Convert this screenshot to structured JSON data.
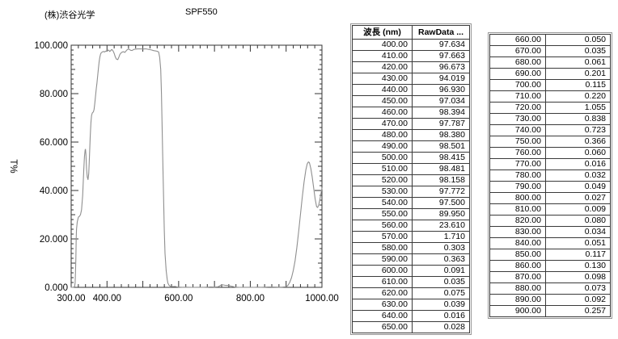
{
  "header": {
    "company": "(株)渋谷光学",
    "title": "SPF550"
  },
  "colors": {
    "curve": "#8f8f8f",
    "axis": "#333333",
    "background": "#ffffff",
    "table_border": "#3a3a3a"
  },
  "chart_data": {
    "type": "line",
    "title": "SPF550",
    "xlabel": "",
    "ylabel": "T%",
    "xlim": [
      300,
      1000
    ],
    "ylim": [
      0,
      100
    ],
    "grid": false,
    "legend": "none",
    "x_minor_step": 20,
    "x_major_step": 100,
    "y_minor_step": 2,
    "y_mid_step": 10,
    "y_major_step": 20,
    "x_tick_labels": [
      {
        "value": 300,
        "label": "300.00"
      },
      {
        "value": 400,
        "label": "400.00"
      },
      {
        "value": 600,
        "label": "600.00"
      },
      {
        "value": 800,
        "label": "800.00"
      },
      {
        "value": 1000,
        "label": "1000.00"
      }
    ],
    "y_tick_labels": [
      {
        "value": 100,
        "label": "100.000"
      },
      {
        "value": 80,
        "label": "80.000"
      },
      {
        "value": 60,
        "label": "60.000"
      },
      {
        "value": 40,
        "label": "40.000"
      },
      {
        "value": 20,
        "label": "20.000"
      },
      {
        "value": 0,
        "label": "0.000"
      }
    ],
    "series": [
      {
        "name": "RawData",
        "color": "#8f8f8f",
        "points": [
          [
            300,
            0
          ],
          [
            305,
            0
          ],
          [
            308,
            0.1
          ],
          [
            310,
            0.6
          ],
          [
            311,
            2
          ],
          [
            312,
            6
          ],
          [
            313,
            12
          ],
          [
            314,
            20
          ],
          [
            315,
            24
          ],
          [
            317,
            27
          ],
          [
            320,
            29
          ],
          [
            323,
            29.3
          ],
          [
            326,
            30
          ],
          [
            329,
            32
          ],
          [
            332,
            38
          ],
          [
            335,
            48
          ],
          [
            337,
            54
          ],
          [
            339,
            56.8
          ],
          [
            340,
            57
          ],
          [
            341,
            55
          ],
          [
            343,
            49
          ],
          [
            345,
            45.5
          ],
          [
            347,
            44.5
          ],
          [
            349,
            47
          ],
          [
            351,
            54
          ],
          [
            353,
            62
          ],
          [
            355,
            68
          ],
          [
            357,
            71
          ],
          [
            359,
            72
          ],
          [
            362,
            72.5
          ],
          [
            364,
            73.5
          ],
          [
            366,
            76
          ],
          [
            368,
            79
          ],
          [
            370,
            82
          ],
          [
            372,
            84.5
          ],
          [
            374,
            87.5
          ],
          [
            376,
            90.5
          ],
          [
            378,
            93
          ],
          [
            380,
            95
          ],
          [
            382,
            96.3
          ],
          [
            384,
            96.9
          ],
          [
            386,
            97.1
          ],
          [
            388,
            97.3
          ],
          [
            390,
            97.4
          ],
          [
            393,
            97.2
          ],
          [
            396,
            97.5
          ],
          [
            398,
            97.6
          ],
          [
            400,
            97.634
          ],
          [
            403,
            97.9
          ],
          [
            405,
            98.0
          ],
          [
            407,
            97.4
          ],
          [
            410,
            97.663
          ],
          [
            412,
            98.1
          ],
          [
            414,
            98.2
          ],
          [
            417,
            97.6
          ],
          [
            420,
            96.673
          ],
          [
            423,
            95.2
          ],
          [
            426,
            94.3
          ],
          [
            430,
            94.019
          ],
          [
            433,
            95.0
          ],
          [
            436,
            96.2
          ],
          [
            440,
            96.93
          ],
          [
            443,
            97.2
          ],
          [
            446,
            97.3
          ],
          [
            450,
            97.034
          ],
          [
            453,
            97.6
          ],
          [
            456,
            98.1
          ],
          [
            460,
            98.394
          ],
          [
            463,
            98.2
          ],
          [
            466,
            97.9
          ],
          [
            470,
            97.787
          ],
          [
            473,
            98.1
          ],
          [
            476,
            98.3
          ],
          [
            480,
            98.38
          ],
          [
            485,
            98.45
          ],
          [
            490,
            98.501
          ],
          [
            495,
            98.46
          ],
          [
            500,
            98.415
          ],
          [
            505,
            98.45
          ],
          [
            510,
            98.481
          ],
          [
            515,
            98.3
          ],
          [
            520,
            98.158
          ],
          [
            525,
            98.0
          ],
          [
            530,
            97.772
          ],
          [
            535,
            97.65
          ],
          [
            540,
            97.5
          ],
          [
            544,
            97.2
          ],
          [
            547,
            95.0
          ],
          [
            550,
            89.95
          ],
          [
            552,
            80
          ],
          [
            554,
            65
          ],
          [
            556,
            50
          ],
          [
            558,
            36
          ],
          [
            560,
            23.61
          ],
          [
            562,
            14
          ],
          [
            565,
            7
          ],
          [
            568,
            3.3
          ],
          [
            570,
            1.71
          ],
          [
            573,
            0.9
          ],
          [
            576,
            0.5
          ],
          [
            580,
            0.303
          ],
          [
            585,
            0.34
          ],
          [
            590,
            0.363
          ],
          [
            595,
            0.2
          ],
          [
            600,
            0.091
          ],
          [
            610,
            0.035
          ],
          [
            620,
            0.075
          ],
          [
            630,
            0.039
          ],
          [
            640,
            0.016
          ],
          [
            650,
            0.028
          ],
          [
            660,
            0.05
          ],
          [
            670,
            0.035
          ],
          [
            680,
            0.061
          ],
          [
            690,
            0.201
          ],
          [
            700,
            0.115
          ],
          [
            710,
            0.22
          ],
          [
            715,
            0.65
          ],
          [
            720,
            1.055
          ],
          [
            725,
            1.0
          ],
          [
            730,
            0.838
          ],
          [
            735,
            0.79
          ],
          [
            740,
            0.723
          ],
          [
            745,
            0.55
          ],
          [
            750,
            0.366
          ],
          [
            755,
            0.2
          ],
          [
            760,
            0.06
          ],
          [
            770,
            0.016
          ],
          [
            780,
            0.032
          ],
          [
            790,
            0.049
          ],
          [
            800,
            0.027
          ],
          [
            810,
            0.009
          ],
          [
            820,
            0.08
          ],
          [
            830,
            0.034
          ],
          [
            840,
            0.051
          ],
          [
            850,
            0.117
          ],
          [
            860,
            0.13
          ],
          [
            870,
            0.098
          ],
          [
            880,
            0.073
          ],
          [
            890,
            0.092
          ],
          [
            900,
            0.257
          ],
          [
            905,
            0.8
          ],
          [
            910,
            2
          ],
          [
            915,
            4
          ],
          [
            920,
            7
          ],
          [
            925,
            11
          ],
          [
            930,
            16.5
          ],
          [
            935,
            23
          ],
          [
            940,
            30
          ],
          [
            945,
            37
          ],
          [
            950,
            43.5
          ],
          [
            955,
            48.5
          ],
          [
            959,
            51
          ],
          [
            962,
            51.8
          ],
          [
            965,
            51.5
          ],
          [
            969,
            49
          ],
          [
            973,
            45.5
          ],
          [
            977,
            41
          ],
          [
            981,
            36.5
          ],
          [
            985,
            33.3
          ],
          [
            988,
            33
          ],
          [
            991,
            34
          ],
          [
            994,
            36
          ],
          [
            997,
            38.5
          ],
          [
            1000,
            41
          ]
        ]
      }
    ]
  },
  "table1": {
    "headers": [
      "波長 (nm)",
      "RawData ..."
    ],
    "rows": [
      [
        "400.00",
        "97.634"
      ],
      [
        "410.00",
        "97.663"
      ],
      [
        "420.00",
        "96.673"
      ],
      [
        "430.00",
        "94.019"
      ],
      [
        "440.00",
        "96.930"
      ],
      [
        "450.00",
        "97.034"
      ],
      [
        "460.00",
        "98.394"
      ],
      [
        "470.00",
        "97.787"
      ],
      [
        "480.00",
        "98.380"
      ],
      [
        "490.00",
        "98.501"
      ],
      [
        "500.00",
        "98.415"
      ],
      [
        "510.00",
        "98.481"
      ],
      [
        "520.00",
        "98.158"
      ],
      [
        "530.00",
        "97.772"
      ],
      [
        "540.00",
        "97.500"
      ],
      [
        "550.00",
        "89.950"
      ],
      [
        "560.00",
        "23.610"
      ],
      [
        "570.00",
        "1.710"
      ],
      [
        "580.00",
        "0.303"
      ],
      [
        "590.00",
        "0.363"
      ],
      [
        "600.00",
        "0.091"
      ],
      [
        "610.00",
        "0.035"
      ],
      [
        "620.00",
        "0.075"
      ],
      [
        "630.00",
        "0.039"
      ],
      [
        "640.00",
        "0.016"
      ],
      [
        "650.00",
        "0.028"
      ]
    ]
  },
  "table2": {
    "rows": [
      [
        "660.00",
        "0.050"
      ],
      [
        "670.00",
        "0.035"
      ],
      [
        "680.00",
        "0.061"
      ],
      [
        "690.00",
        "0.201"
      ],
      [
        "700.00",
        "0.115"
      ],
      [
        "710.00",
        "0.220"
      ],
      [
        "720.00",
        "1.055"
      ],
      [
        "730.00",
        "0.838"
      ],
      [
        "740.00",
        "0.723"
      ],
      [
        "750.00",
        "0.366"
      ],
      [
        "760.00",
        "0.060"
      ],
      [
        "770.00",
        "0.016"
      ],
      [
        "780.00",
        "0.032"
      ],
      [
        "790.00",
        "0.049"
      ],
      [
        "800.00",
        "0.027"
      ],
      [
        "810.00",
        "0.009"
      ],
      [
        "820.00",
        "0.080"
      ],
      [
        "830.00",
        "0.034"
      ],
      [
        "840.00",
        "0.051"
      ],
      [
        "850.00",
        "0.117"
      ],
      [
        "860.00",
        "0.130"
      ],
      [
        "870.00",
        "0.098"
      ],
      [
        "880.00",
        "0.073"
      ],
      [
        "890.00",
        "0.092"
      ],
      [
        "900.00",
        "0.257"
      ]
    ]
  }
}
